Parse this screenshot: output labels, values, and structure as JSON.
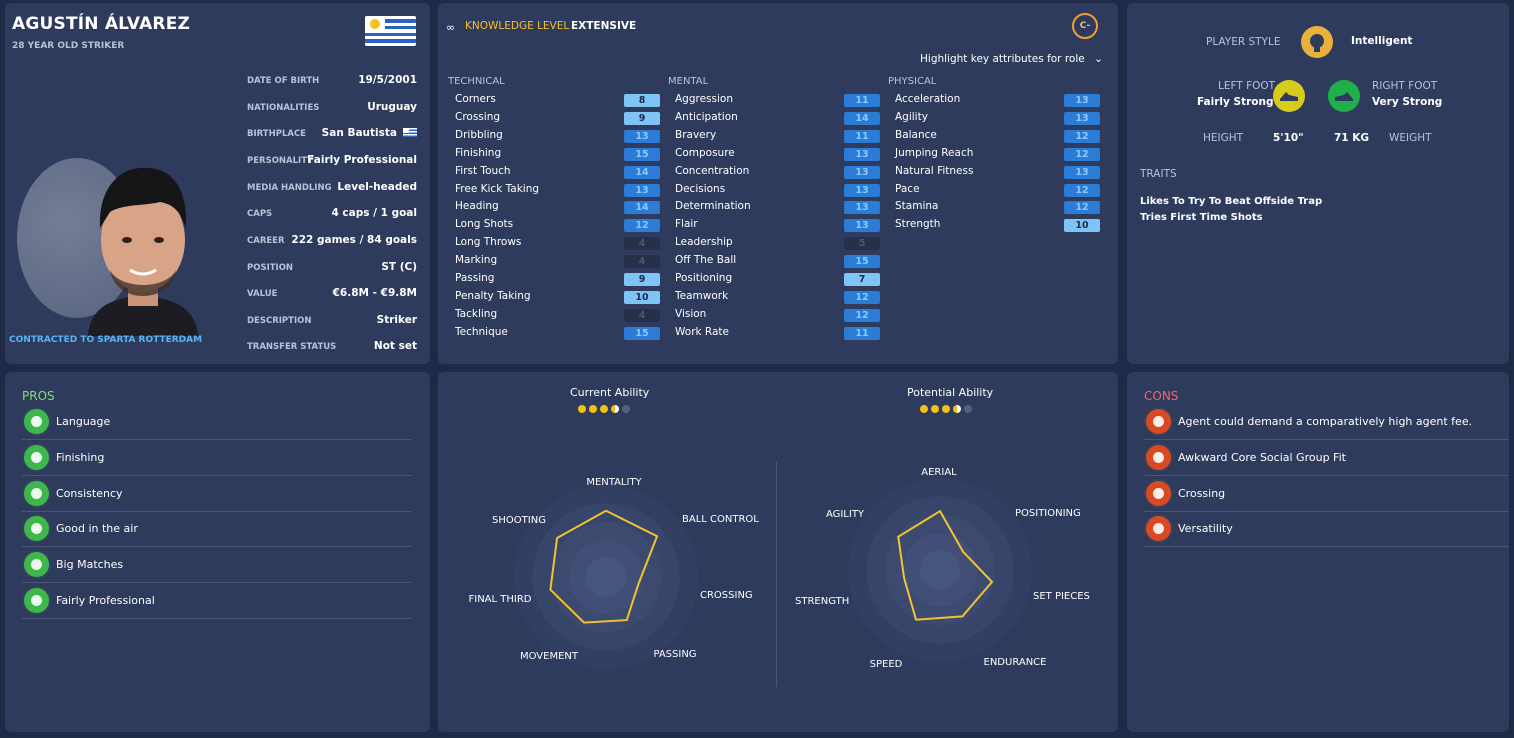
{
  "profile": {
    "name": "AGUSTÍN ÁLVAREZ",
    "subtitle": "28 YEAR OLD STRIKER",
    "contracted": "CONTRACTED TO SPARTA ROTTERDAM",
    "info": [
      {
        "k": "DATE OF BIRTH",
        "v": "19/5/2001"
      },
      {
        "k": "NATIONALITIES",
        "v": "Uruguay"
      },
      {
        "k": "BIRTHPLACE",
        "v": "San Bautista"
      },
      {
        "k": "PERSONALITY",
        "v": "Fairly Professional"
      },
      {
        "k": "MEDIA HANDLING",
        "v": "Level-headed"
      },
      {
        "k": "CAPS",
        "v": "4 caps / 1 goal"
      },
      {
        "k": "CAREER",
        "v": "222 games /  84  goals"
      },
      {
        "k": "POSITION",
        "v": "ST (C)"
      },
      {
        "k": "VALUE",
        "v": "€6.8M - €9.8M"
      },
      {
        "k": "DESCRIPTION",
        "v": "Striker"
      },
      {
        "k": "TRANSFER STATUS",
        "v": "Not set"
      }
    ]
  },
  "knowledge": {
    "label": "KNOWLEDGE LEVEL",
    "value": "EXTENSIVE",
    "grade": "C-",
    "highlight": "Highlight key attributes for role"
  },
  "attributes": {
    "technical": {
      "title": "TECHNICAL",
      "items": [
        {
          "n": "Corners",
          "v": "8"
        },
        {
          "n": "Crossing",
          "v": "9"
        },
        {
          "n": "Dribbling",
          "v": "13"
        },
        {
          "n": "Finishing",
          "v": "15"
        },
        {
          "n": "First Touch",
          "v": "14"
        },
        {
          "n": "Free Kick Taking",
          "v": "13"
        },
        {
          "n": "Heading",
          "v": "14"
        },
        {
          "n": "Long Shots",
          "v": "12"
        },
        {
          "n": "Long Throws",
          "v": "4"
        },
        {
          "n": "Marking",
          "v": "4"
        },
        {
          "n": "Passing",
          "v": "9"
        },
        {
          "n": "Penalty Taking",
          "v": "10"
        },
        {
          "n": "Tackling",
          "v": "4"
        },
        {
          "n": "Technique",
          "v": "15"
        }
      ]
    },
    "mental": {
      "title": "MENTAL",
      "items": [
        {
          "n": "Aggression",
          "v": "11"
        },
        {
          "n": "Anticipation",
          "v": "14"
        },
        {
          "n": "Bravery",
          "v": "11"
        },
        {
          "n": "Composure",
          "v": "13"
        },
        {
          "n": "Concentration",
          "v": "13"
        },
        {
          "n": "Decisions",
          "v": "13"
        },
        {
          "n": "Determination",
          "v": "13"
        },
        {
          "n": "Flair",
          "v": "13"
        },
        {
          "n": "Leadership",
          "v": "5"
        },
        {
          "n": "Off The Ball",
          "v": "15"
        },
        {
          "n": "Positioning",
          "v": "7"
        },
        {
          "n": "Teamwork",
          "v": "12"
        },
        {
          "n": "Vision",
          "v": "12"
        },
        {
          "n": "Work Rate",
          "v": "11"
        }
      ]
    },
    "physical": {
      "title": "PHYSICAL",
      "items": [
        {
          "n": "Acceleration",
          "v": "13"
        },
        {
          "n": "Agility",
          "v": "13"
        },
        {
          "n": "Balance",
          "v": "12"
        },
        {
          "n": "Jumping Reach",
          "v": "12"
        },
        {
          "n": "Natural Fitness",
          "v": "13"
        },
        {
          "n": "Pace",
          "v": "12"
        },
        {
          "n": "Stamina",
          "v": "12"
        },
        {
          "n": "Strength",
          "v": "10"
        }
      ]
    }
  },
  "style": {
    "player_style_label": "PLAYER STYLE",
    "player_style": "Intelligent",
    "left_foot_label": "LEFT FOOT",
    "left_foot": "Fairly Strong",
    "right_foot_label": "RIGHT FOOT",
    "right_foot": "Very Strong",
    "height_label": "HEIGHT",
    "height": "5'10\"",
    "weight": "71 KG",
    "weight_label": "WEIGHT",
    "traits_label": "TRAITS",
    "traits": [
      "Likes To Try To Beat Offside Trap",
      "Tries First Time Shots"
    ]
  },
  "pros": {
    "title": "PROS",
    "items": [
      {
        "t": "Language",
        "icon": "speech-bubble-icon"
      },
      {
        "t": "Finishing",
        "icon": "goal-net-icon"
      },
      {
        "t": "Consistency",
        "icon": "target-icon"
      },
      {
        "t": "Good in the air",
        "icon": "header-icon"
      },
      {
        "t": "Big Matches",
        "icon": "ball-icon"
      },
      {
        "t": "Fairly Professional",
        "icon": "head-icon"
      }
    ]
  },
  "cons": {
    "title": "CONS",
    "items": [
      {
        "t": "Agent could demand a comparatively high agent fee.",
        "icon": "agent-icon"
      },
      {
        "t": "Awkward Core Social Group Fit",
        "icon": "flask-icon"
      },
      {
        "t": "Crossing",
        "icon": "cross-icon"
      },
      {
        "t": "Versatility",
        "icon": "swap-icon"
      }
    ]
  },
  "ability": {
    "current_label": "Current Ability",
    "current_stars": 3.5,
    "potential_label": "Potential Ability",
    "potential_stars": 3.5,
    "radar1": {
      "labels": [
        "MENTALITY",
        "BALL CONTROL",
        "CROSSING",
        "PASSING",
        "MOVEMENT",
        "FINAL THIRD",
        "SHOOTING"
      ],
      "values": [
        0.72,
        0.71,
        0.36,
        0.52,
        0.55,
        0.62,
        0.68
      ]
    },
    "radar2": {
      "labels": [
        "AERIAL",
        "POSITIONING",
        "SET PIECES",
        "ENDURANCE",
        "SPEED",
        "STRENGTH",
        "AGILITY"
      ],
      "values": [
        0.64,
        0.32,
        0.58,
        0.56,
        0.6,
        0.4,
        0.58
      ]
    }
  },
  "colors": {
    "bg": "#1f2a47",
    "panel": "#2e3b5c",
    "accent": "#f4c030",
    "attr_high": "#2a7cd6",
    "attr_mid": "#7ec4f7"
  }
}
